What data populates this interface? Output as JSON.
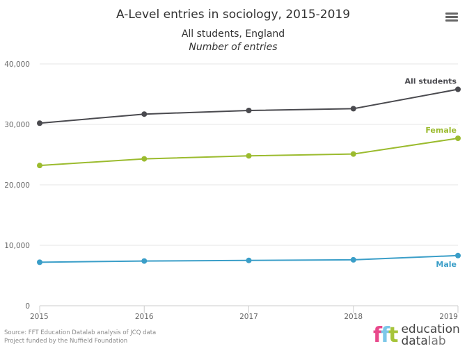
{
  "menu": {
    "icon": "hamburger-menu-icon"
  },
  "footer": {
    "source": "Source: FFT Education Datalab analysis of JCQ data",
    "funding": "Project funded by the Nuffield Foundation"
  },
  "logo": {
    "mark": "fft",
    "word1": "education",
    "word2_bold": "data",
    "word2_light": "lab",
    "colors": [
      "#e8488b",
      "#7cc7e8",
      "#a6c43a"
    ]
  },
  "chart_data": {
    "type": "line",
    "title": "A-Level entries in sociology, 2015-2019",
    "subtitle": "All students, England",
    "ylabel_note": "Number of entries",
    "xlabel": "",
    "ylabel": "",
    "x": [
      "2015",
      "2016",
      "2017",
      "2018",
      "2019"
    ],
    "ylim": [
      0,
      40000
    ],
    "yticks": [
      0,
      10000,
      20000,
      30000,
      40000
    ],
    "ytick_labels": [
      "0",
      "10,000",
      "20,000",
      "30,000",
      "40,000"
    ],
    "grid": true,
    "legend": "inline-end-labels",
    "series": [
      {
        "name": "All students",
        "color": "#4a4a4f",
        "values": [
          30200,
          31700,
          32300,
          32600,
          35800
        ]
      },
      {
        "name": "Female",
        "color": "#9bbb2e",
        "values": [
          23200,
          24300,
          24800,
          25100,
          27700
        ]
      },
      {
        "name": "Male",
        "color": "#3a9ec8",
        "values": [
          7200,
          7400,
          7500,
          7600,
          8300
        ]
      }
    ]
  }
}
